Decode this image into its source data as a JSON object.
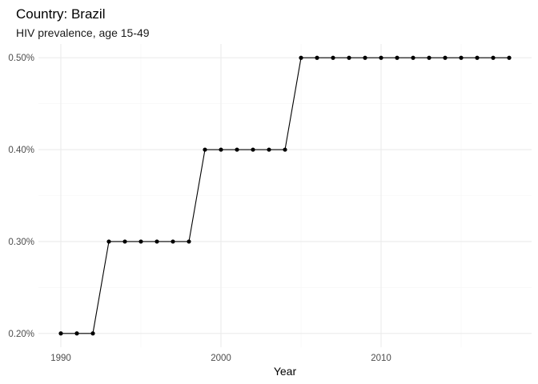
{
  "chart_data": {
    "type": "line",
    "title": "Country: Brazil",
    "subtitle": "HIV prevalence, age 15-49",
    "xlabel": "Year",
    "ylabel": "",
    "x": [
      1990,
      1991,
      1992,
      1993,
      1994,
      1995,
      1996,
      1997,
      1998,
      1999,
      2000,
      2001,
      2002,
      2003,
      2004,
      2005,
      2006,
      2007,
      2008,
      2009,
      2010,
      2011,
      2012,
      2013,
      2014,
      2015,
      2016,
      2017,
      2018
    ],
    "series": [
      {
        "values": [
          0.2,
          0.2,
          0.2,
          0.3,
          0.3,
          0.3,
          0.3,
          0.3,
          0.3,
          0.4,
          0.4,
          0.4,
          0.4,
          0.4,
          0.4,
          0.5,
          0.5,
          0.5,
          0.5,
          0.5,
          0.5,
          0.5,
          0.5,
          0.5,
          0.5,
          0.5,
          0.5,
          0.5,
          0.5
        ]
      }
    ],
    "xlim": [
      1988.6,
      2019.4
    ],
    "ylim": [
      0.185,
      0.515
    ],
    "x_ticks": [
      1990,
      2000,
      2010
    ],
    "x_tick_labels": [
      "1990",
      "2000",
      "2010"
    ],
    "x_minor_ticks": [
      1995,
      2005,
      2015
    ],
    "y_ticks": [
      0.2,
      0.3,
      0.4,
      0.5
    ],
    "y_tick_labels": [
      "0.20%",
      "0.30%",
      "0.40%",
      "0.50%"
    ],
    "y_minor_ticks": [
      0.25,
      0.35,
      0.45
    ],
    "grid": true,
    "legend": "none",
    "colors": {
      "line": "#000000",
      "point": "#000000",
      "grid_major": "#ebebeb",
      "grid_minor": "#f5f5f5",
      "background": "#ffffff"
    }
  }
}
